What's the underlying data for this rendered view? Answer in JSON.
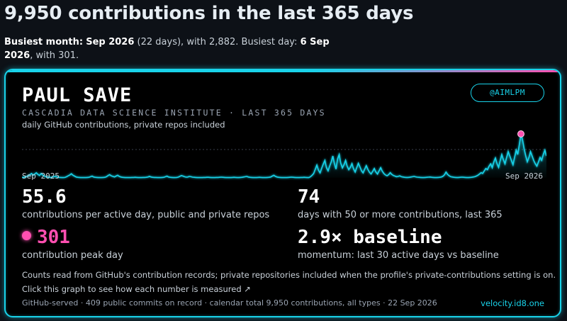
{
  "headline": "9,950 contributions in the last 365 days",
  "busiest": {
    "month_label": "Busiest month:",
    "month": "Sep 2026",
    "month_detail": "(22 days), with 2,882.",
    "day_label": "Busiest day:",
    "day": "6 Sep 2026",
    "day_detail": ", with 301."
  },
  "card": {
    "name": "PAUL SAVE",
    "handle": "@AIMLPM",
    "org": "CASCADIA DATA SCIENCE INSTITUTE · LAST 365 DAYS",
    "description": "daily GitHub contributions, private repos included",
    "axis_start": "Sep 2025",
    "axis_end": "Sep 2026",
    "stats": [
      {
        "value": "55.6",
        "label": "contributions per active day, public and private repos"
      },
      {
        "value": "74",
        "label": "days with 50 or more contributions, last 365"
      },
      {
        "value": "301",
        "label": "contribution peak day"
      },
      {
        "value": "2.9× baseline",
        "label": "momentum: last 30 active days vs baseline"
      }
    ],
    "note": "Counts read from GitHub's contribution records; private repositories included when the profile's private-contributions setting is on.",
    "link": "Click this graph to see how each number is measured ↗",
    "footer": "GitHub-served · 409 public commits on record · calendar total 9,950 contributions, all types · 22 Sep 2026",
    "site": "velocity.id8.one"
  },
  "colors": {
    "accent": "#19d3ea",
    "highlight": "#ff4fb0",
    "background": "#000000"
  },
  "chart_data": {
    "type": "area",
    "x_start": "Sep 2025",
    "x_end": "Sep 2026",
    "peak_value": 301,
    "values": [
      4,
      3,
      6,
      10,
      14,
      22,
      30,
      18,
      26,
      35,
      24,
      16,
      30,
      20,
      12,
      8,
      6,
      4,
      3,
      5,
      8,
      11,
      6,
      4,
      3,
      2,
      2,
      3,
      8,
      14,
      20,
      28,
      18,
      12,
      6,
      4,
      3,
      2,
      2,
      2,
      2,
      3,
      4,
      8,
      12,
      6,
      4,
      3,
      2,
      2,
      2,
      3,
      4,
      8,
      16,
      22,
      14,
      10,
      6,
      12,
      18,
      10,
      6,
      4,
      3,
      2,
      2,
      2,
      2,
      3,
      3,
      4,
      3,
      2,
      2,
      2,
      3,
      3,
      4,
      6,
      10,
      6,
      4,
      3,
      3,
      2,
      2,
      2,
      3,
      4,
      8,
      12,
      6,
      4,
      3,
      2,
      2,
      3,
      5,
      10,
      16,
      12,
      8,
      5,
      6,
      10,
      8,
      5,
      4,
      3,
      2,
      2,
      2,
      2,
      3,
      3,
      4,
      4,
      3,
      2,
      2,
      2,
      3,
      3,
      4,
      5,
      4,
      3,
      2,
      2,
      2,
      2,
      3,
      4,
      3,
      2,
      2,
      3,
      4,
      6,
      8,
      10,
      6,
      4,
      3,
      2,
      2,
      2,
      3,
      4,
      3,
      2,
      2,
      2,
      3,
      4,
      6,
      12,
      18,
      10,
      6,
      4,
      3,
      2,
      2,
      2,
      2,
      3,
      4,
      5,
      4,
      3,
      2,
      2,
      2,
      3,
      3,
      4,
      3,
      2,
      2,
      8,
      18,
      30,
      60,
      88,
      52,
      34,
      66,
      95,
      120,
      70,
      48,
      80,
      110,
      150,
      96,
      60,
      130,
      160,
      100,
      68,
      90,
      120,
      80,
      56,
      72,
      98,
      62,
      40,
      70,
      100,
      76,
      48,
      34,
      60,
      84,
      58,
      38,
      26,
      44,
      64,
      40,
      26,
      48,
      70,
      46,
      30,
      20,
      14,
      22,
      36,
      24,
      16,
      12,
      8,
      10,
      14,
      8,
      6,
      4,
      3,
      3,
      4,
      6,
      8,
      10,
      7,
      5,
      4,
      3,
      2,
      2,
      3,
      4,
      5,
      6,
      4,
      3,
      2,
      2,
      3,
      4,
      6,
      10,
      20,
      40,
      24,
      14,
      8,
      6,
      4,
      3,
      2,
      3,
      4,
      5,
      4,
      3,
      2,
      2,
      3,
      4,
      6,
      8,
      12,
      18,
      26,
      36,
      30,
      48,
      64,
      56,
      80,
      96,
      70,
      110,
      136,
      96,
      72,
      120,
      160,
      124,
      96,
      140,
      180,
      150,
      120,
      90,
      140,
      190,
      160,
      230,
      301,
      260,
      200,
      150,
      110,
      140,
      180,
      150,
      120,
      96,
      80,
      110,
      140,
      120,
      160,
      190,
      150
    ]
  }
}
